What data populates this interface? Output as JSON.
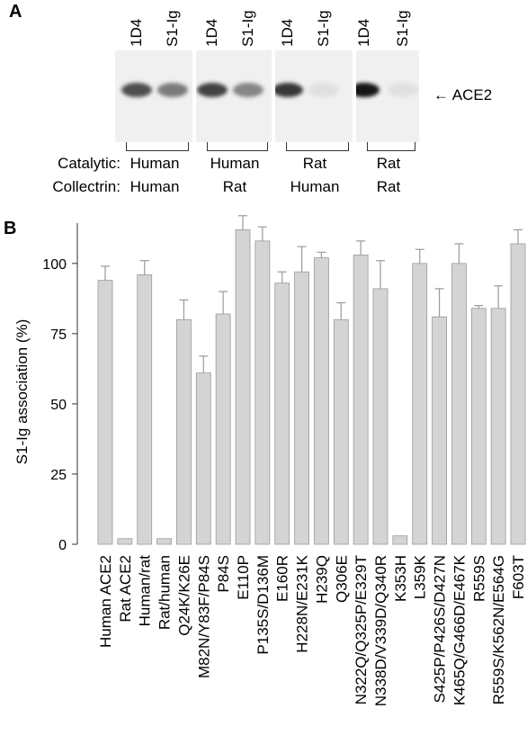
{
  "panel_a": {
    "letter": "A",
    "lane_labels": [
      "1D4",
      "S1-Ig",
      "1D4",
      "S1-Ig",
      "1D4",
      "S1-Ig",
      "1D4",
      "S1-Ig"
    ],
    "band_intensity": [
      0.7,
      0.5,
      0.75,
      0.45,
      0.8,
      0.05,
      0.95,
      0.05
    ],
    "arrow_label": "ACE2",
    "row_labels": [
      "Catalytic:",
      "Collectrin:"
    ],
    "groups": [
      {
        "catalytic": "Human",
        "collectrin": "Human"
      },
      {
        "catalytic": "Human",
        "collectrin": "Rat"
      },
      {
        "catalytic": "Rat",
        "collectrin": "Human"
      },
      {
        "catalytic": "Rat",
        "collectrin": "Rat"
      }
    ]
  },
  "chart_data": {
    "type": "bar",
    "panel_letter": "B",
    "ylabel": "S1-Ig association (%)",
    "ylim": [
      0,
      115
    ],
    "yticks": [
      0,
      25,
      50,
      75,
      100
    ],
    "categories": [
      "Human ACE2",
      "Rat ACE2",
      "Human/rat",
      "Rat/human",
      "Q24K/K26E",
      "M82N/Y83F/P84S",
      "P84S",
      "E110P",
      "P135S/D136M",
      "E160R",
      "H228N/E231K",
      "H239Q",
      "Q306E",
      "N322Q/Q325P/E329T",
      "N338D/V339D/Q340R",
      "K353H",
      "L359K",
      "S425P/P426S/D427N",
      "K465Q/G466D/E467K",
      "R559S",
      "R559S/K562N/E564G",
      "F603T"
    ],
    "values": [
      94,
      2,
      96,
      2,
      80,
      61,
      82,
      112,
      108,
      93,
      97,
      102,
      80,
      103,
      91,
      3,
      100,
      81,
      100,
      84,
      84,
      107
    ],
    "errors": [
      5,
      0.3,
      5,
      0.3,
      7,
      6,
      8,
      5,
      5,
      4,
      9,
      2,
      6,
      5,
      10,
      0.3,
      5,
      10,
      7,
      1,
      8,
      5
    ],
    "bar_color": "#d4d4d4",
    "grid": false
  }
}
